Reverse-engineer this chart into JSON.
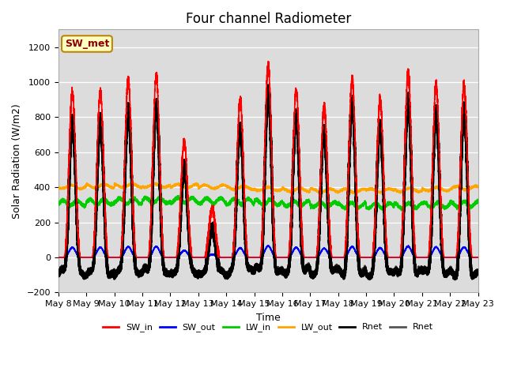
{
  "title": "Four channel Radiometer",
  "xlabel": "Time",
  "ylabel": "Solar Radiation (W/m2)",
  "ylim": [
    -200,
    1300
  ],
  "yticks": [
    -200,
    0,
    200,
    400,
    600,
    800,
    1000,
    1200
  ],
  "annotation_text": "SW_met",
  "annotation_color": "#8B0000",
  "annotation_bg": "#FFFFC0",
  "annotation_border": "#B8860B",
  "x_tick_labels": [
    "May 8",
    "May 9",
    "May 10",
    "May 11",
    "May 12",
    "May 13",
    "May 14",
    "May 15",
    "May 16",
    "May 17",
    "May 18",
    "May 19",
    "May 20",
    "May 21",
    "May 22",
    "May 23"
  ],
  "num_days": 15,
  "colors": {
    "SW_in": "#FF0000",
    "SW_out": "#0000FF",
    "LW_in": "#00CC00",
    "LW_out": "#FFA500",
    "Rnet_black": "#000000",
    "Rnet_dark": "#333333"
  },
  "legend_labels": [
    "SW_in",
    "SW_out",
    "LW_in",
    "LW_out",
    "Rnet",
    "Rnet"
  ],
  "legend_colors": [
    "#FF0000",
    "#0000FF",
    "#00CC00",
    "#FFA500",
    "#000000",
    "#555555"
  ],
  "plot_bg": "#DCDCDC",
  "fig_bg": "#FFFFFF"
}
